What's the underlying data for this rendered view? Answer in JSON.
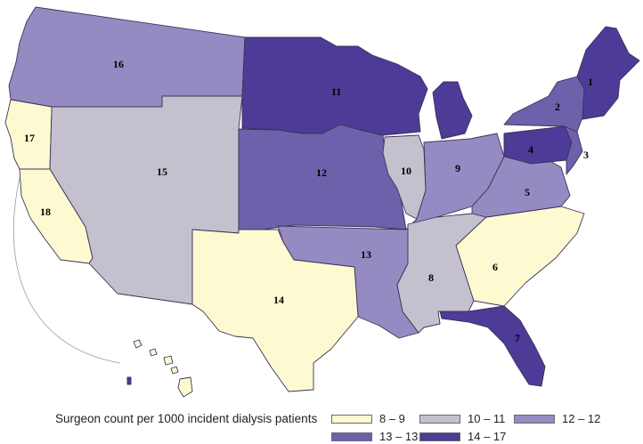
{
  "map": {
    "regions": [
      {
        "id": "r1",
        "label": "1",
        "range": "14-17"
      },
      {
        "id": "r2",
        "label": "2",
        "range": "12-12"
      },
      {
        "id": "r3",
        "label": "3",
        "range": "13-13"
      },
      {
        "id": "r4",
        "label": "4",
        "range": "14-17"
      },
      {
        "id": "r5",
        "label": "5",
        "range": "12-12"
      },
      {
        "id": "r6",
        "label": "6",
        "range": "8-9"
      },
      {
        "id": "r7",
        "label": "7",
        "range": "14-17"
      },
      {
        "id": "r8",
        "label": "8",
        "range": "10-11"
      },
      {
        "id": "r9",
        "label": "9",
        "range": "12-12"
      },
      {
        "id": "r10",
        "label": "10",
        "range": "10-11"
      },
      {
        "id": "r11",
        "label": "11",
        "range": "14-17"
      },
      {
        "id": "r12",
        "label": "12",
        "range": "13-13"
      },
      {
        "id": "r13",
        "label": "13",
        "range": "12-12"
      },
      {
        "id": "r14",
        "label": "14",
        "range": "8-9"
      },
      {
        "id": "r15",
        "label": "15",
        "range": "10-11"
      },
      {
        "id": "r16",
        "label": "16",
        "range": "12-12"
      },
      {
        "id": "r17",
        "label": "17",
        "range": "8-9"
      },
      {
        "id": "r18",
        "label": "18",
        "range": "8-9"
      }
    ]
  },
  "legend": {
    "title": "Surgeon count per 1000 incident dialysis patients",
    "items": [
      {
        "label": "8 – 9",
        "color": "#fdfad2"
      },
      {
        "label": "10 – 11",
        "color": "#c4c0cd"
      },
      {
        "label": "12 – 12",
        "color": "#958bc2"
      },
      {
        "label": "13 – 13",
        "color": "#6e61ab"
      },
      {
        "label": "14 – 17",
        "color": "#4d3b97"
      }
    ]
  }
}
